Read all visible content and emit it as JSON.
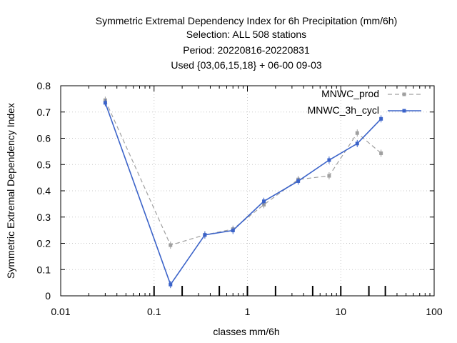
{
  "chart_data": {
    "type": "line",
    "title_lines": [
      "Symmetric Extremal Dependency Index  for 6h Precipitation (mm/6h)",
      "Selection: ALL    508 stations",
      "Period: 20220816-20220831",
      "Used {03,06,15,18} + 06-00 09-03"
    ],
    "xlabel": "classes mm/6h",
    "ylabel": "Symmetric Extremal Dependency Index",
    "x_scale": "log",
    "xlim": [
      0.01,
      100
    ],
    "ylim": [
      0,
      0.8
    ],
    "x_ticks": [
      "0.01",
      "0.1",
      "1",
      "10",
      "100"
    ],
    "y_ticks": [
      "0",
      "0.1",
      "0.2",
      "0.3",
      "0.4",
      "0.5",
      "0.6",
      "0.7",
      "0.8"
    ],
    "grid": true,
    "legend_position": "top-right",
    "class_marks": [
      0.1,
      0.2,
      0.5,
      1,
      2,
      5,
      10,
      20,
      30
    ],
    "series": [
      {
        "name": "MNWC_prod",
        "color": "#a0a0a0",
        "style": "dashed",
        "x": [
          0.03,
          0.15,
          0.35,
          0.7,
          1.5,
          3.5,
          7.5,
          15,
          27
        ],
        "values": [
          0.745,
          0.193,
          0.232,
          0.254,
          0.347,
          0.443,
          0.457,
          0.62,
          0.543
        ]
      },
      {
        "name": "MNWC_3h_cycl",
        "color": "#3b63c9",
        "style": "solid",
        "x": [
          0.03,
          0.15,
          0.35,
          0.7,
          1.5,
          3.5,
          7.5,
          15,
          27
        ],
        "values": [
          0.735,
          0.043,
          0.232,
          0.249,
          0.36,
          0.437,
          0.517,
          0.58,
          0.674
        ]
      }
    ]
  }
}
